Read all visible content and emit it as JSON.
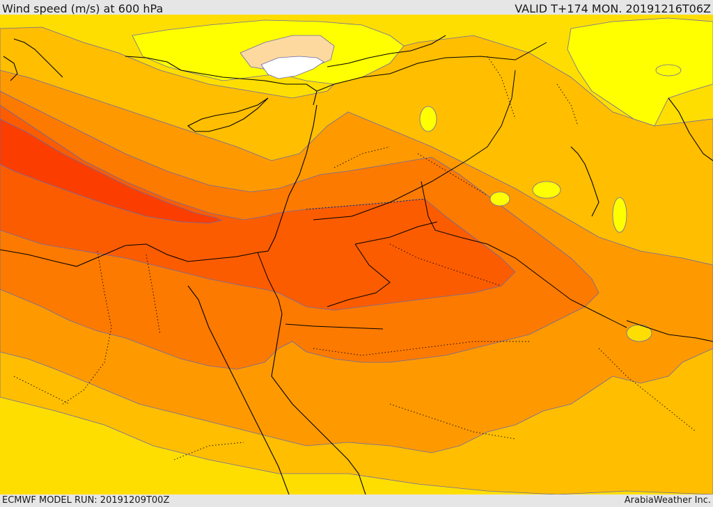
{
  "header": {
    "title": "Wind speed (m/s) at 600 hPa",
    "valid": "VALID T+174 MON. 20191216T06Z"
  },
  "footer": {
    "model_run": "ECMWF MODEL RUN: 20191209T00Z",
    "credit": "ArabiaWeather Inc."
  },
  "colors": {
    "band_very_light": "#ffffff",
    "band_peach": "#fdd9a0",
    "band_yellow": "#ffff00",
    "band_gold": "#fede00",
    "band_amber": "#ffbe00",
    "band_orange": "#fe9a00",
    "band_dark_orange": "#fd7a00",
    "band_red_orange": "#fc5c00",
    "band_red": "#fb3e00",
    "coastline": "#000000",
    "contour": "#6a6aa8"
  }
}
